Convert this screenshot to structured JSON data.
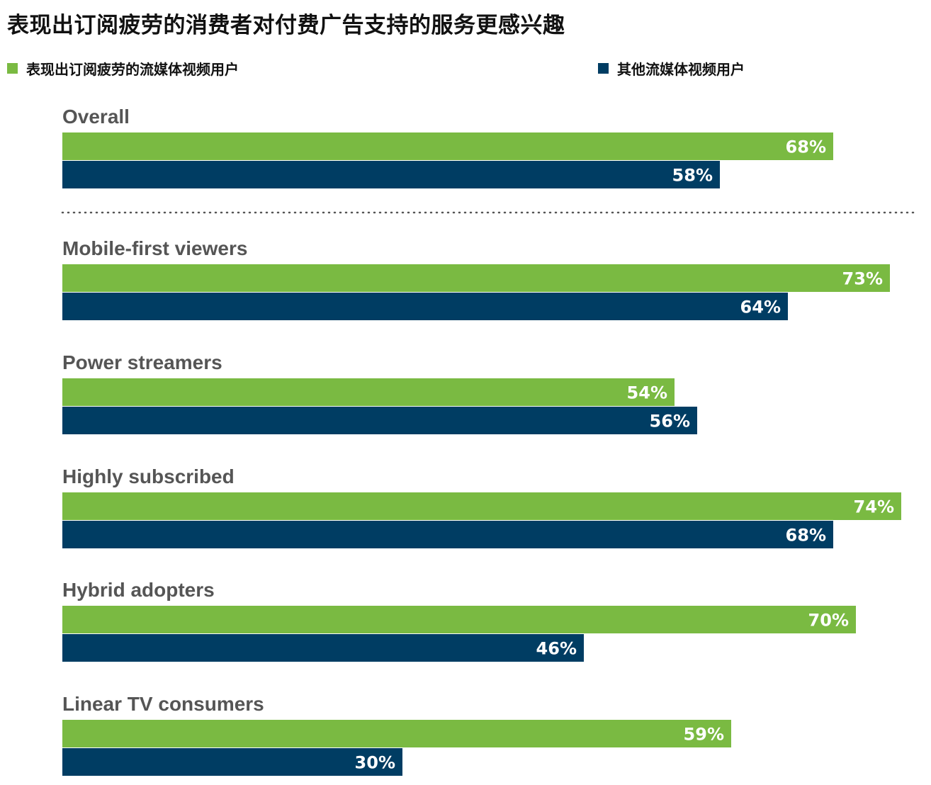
{
  "title": "表现出订阅疲劳的消费者对付费广告支持的服务更感兴趣",
  "legend": [
    {
      "label": "表现出订阅疲劳的流媒体视频用户",
      "color": "#7aba42"
    },
    {
      "label": "其他流媒体视频用户",
      "color": "#003d63"
    }
  ],
  "chart_data": {
    "type": "bar",
    "orientation": "horizontal",
    "categories": [
      "Overall",
      "Mobile-first viewers",
      "Power streamers",
      "Highly subscribed",
      "Hybrid adopters",
      "Linear TV consumers"
    ],
    "series": [
      {
        "name": "表现出订阅疲劳的流媒体视频用户",
        "values": [
          68,
          73,
          54,
          74,
          70,
          59
        ],
        "labels": [
          "68%",
          "73%",
          "54%",
          "74%",
          "70%",
          "59%"
        ],
        "color": "#7aba42"
      },
      {
        "name": "其他流媒体视频用户",
        "values": [
          58,
          64,
          56,
          68,
          46,
          30
        ],
        "labels": [
          "58%",
          "64%",
          "56%",
          "68%",
          "46%",
          "30%"
        ],
        "color": "#003d63"
      }
    ],
    "unit": "%",
    "xlim": [
      0,
      75
    ],
    "grid": false,
    "legend_position": "top",
    "separator_after_first": true
  }
}
